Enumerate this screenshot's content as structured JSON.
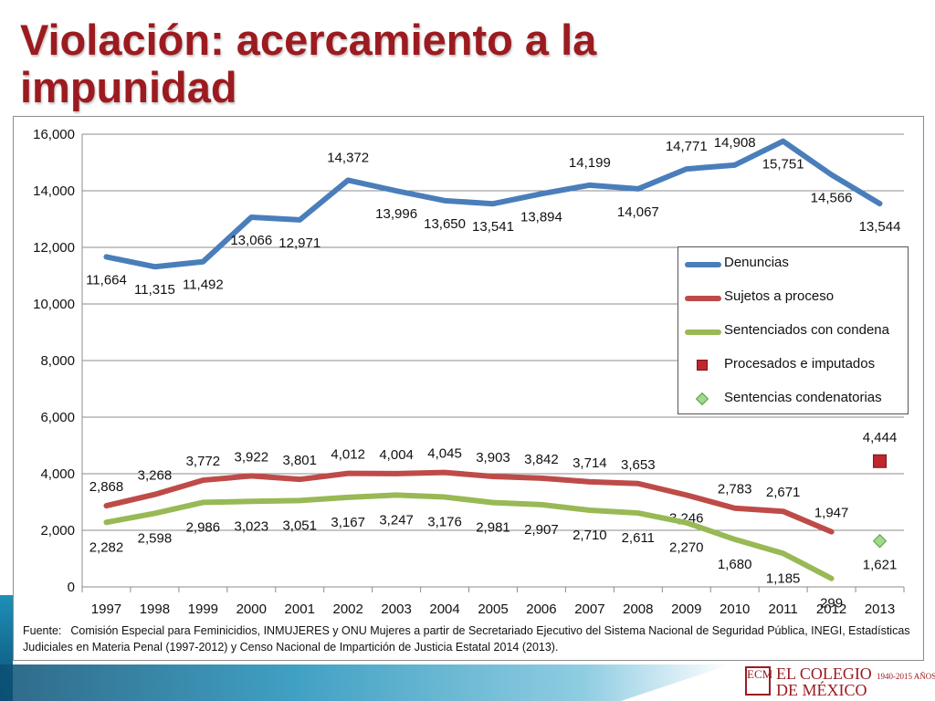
{
  "slide": {
    "title": "Violación: acercamiento a la impunidad",
    "source": {
      "label": "Fuente:",
      "text": "Comisión Especial para Feminicidios, INMUJERES y ONU Mujeres a partir de  Secretariado Ejecutivo del Sistema Nacional de Seguridad Pública, INEGI, Estadísticas  Judiciales en Materia Penal (1997-2012) y Censo Nacional de Impartición de Justicia Estatal 2014 (2013)."
    },
    "logo": {
      "emblem": "ECM",
      "line1": "EL COLEGIO",
      "line2": "DE MÉXICO",
      "years": "1940-2015",
      "suffix": "AÑOS"
    },
    "colors": {
      "title": "#9c1b20",
      "accent_band": "#1e8fb8"
    }
  },
  "chart_data": {
    "type": "line",
    "title": "",
    "xlabel": "",
    "ylabel": "",
    "categories": [
      "1997",
      "1998",
      "1999",
      "2000",
      "2001",
      "2002",
      "2003",
      "2004",
      "2005",
      "2006",
      "2007",
      "2008",
      "2009",
      "2010",
      "2011",
      "2012",
      "2013"
    ],
    "ylim": [
      0,
      16000
    ],
    "y_ticks": [
      0,
      2000,
      4000,
      6000,
      8000,
      10000,
      12000,
      14000,
      16000
    ],
    "y_tick_labels": [
      "0",
      "2,000",
      "4,000",
      "6,000",
      "8,000",
      "10,000",
      "12,000",
      "14,000",
      "16,000"
    ],
    "grid": true,
    "legend_position": "right",
    "series": [
      {
        "name": "Denuncias",
        "kind": "line",
        "color": "#4a7ebb",
        "values": [
          11664,
          11315,
          11492,
          13066,
          12971,
          14372,
          13996,
          13650,
          13541,
          13894,
          14199,
          14067,
          14771,
          14908,
          15751,
          14566,
          13544
        ],
        "labels": [
          "11,664",
          "11,315",
          "11,492",
          "13,066",
          "12,971",
          "14,372",
          "13,996",
          "13,650",
          "13,541",
          "13,894",
          "14,199",
          "14,067",
          "14,771",
          "14,908",
          "15,751",
          "14,566",
          "13,544"
        ]
      },
      {
        "name": "Sujetos a proceso",
        "kind": "line",
        "color": "#be4b48",
        "values": [
          2868,
          3268,
          3772,
          3922,
          3801,
          4012,
          4004,
          4045,
          3903,
          3842,
          3714,
          3653,
          3246,
          2783,
          2671,
          1947,
          null
        ],
        "labels": [
          "2,868",
          "3,268",
          "3,772",
          "3,922",
          "3,801",
          "4,012",
          "4,004",
          "4,045",
          "3,903",
          "3,842",
          "3,714",
          "3,653",
          "3,246",
          "2,783",
          "2,671",
          "1,947",
          ""
        ]
      },
      {
        "name": "Sentenciados con condena",
        "kind": "line",
        "color": "#98b954",
        "values": [
          2282,
          2598,
          2986,
          3023,
          3051,
          3167,
          3247,
          3176,
          2981,
          2907,
          2710,
          2611,
          2270,
          1680,
          1185,
          299,
          null
        ],
        "labels": [
          "2,282",
          "2,598",
          "2,986",
          "3,023",
          "3,051",
          "3,167",
          "3,247",
          "3,176",
          "2,981",
          "2,907",
          "2,710",
          "2,611",
          "2,270",
          "1,680",
          "1,185",
          "299",
          ""
        ]
      },
      {
        "name": "Procesados e imputados",
        "kind": "marker",
        "marker": "square",
        "color": "#c0262e",
        "values": [
          null,
          null,
          null,
          null,
          null,
          null,
          null,
          null,
          null,
          null,
          null,
          null,
          null,
          null,
          null,
          null,
          4444
        ],
        "labels": [
          "",
          "",
          "",
          "",
          "",
          "",
          "",
          "",
          "",
          "",
          "",
          "",
          "",
          "",
          "",
          "",
          "4,444"
        ]
      },
      {
        "name": "Sentencias condenatorias",
        "kind": "marker",
        "marker": "diamond",
        "color": "#9fd98a",
        "values": [
          null,
          null,
          null,
          null,
          null,
          null,
          null,
          null,
          null,
          null,
          null,
          null,
          null,
          null,
          null,
          null,
          1621
        ],
        "labels": [
          "",
          "",
          "",
          "",
          "",
          "",
          "",
          "",
          "",
          "",
          "",
          "",
          "",
          "",
          "",
          "",
          "1,621"
        ]
      }
    ]
  }
}
